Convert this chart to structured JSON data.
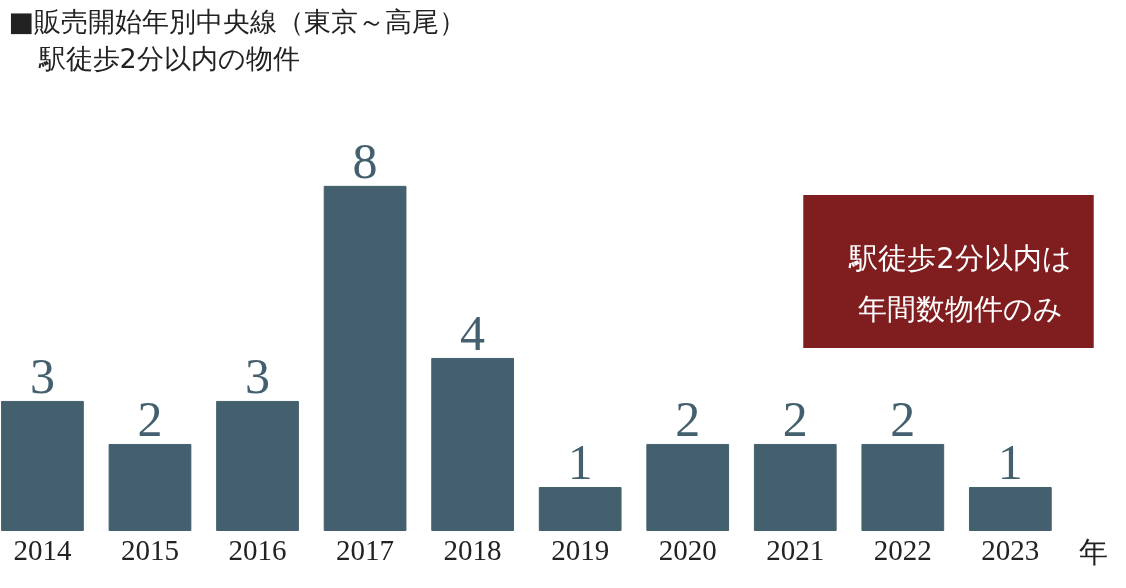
{
  "chart_data": {
    "type": "bar",
    "title": "■販売開始年別中央線（東京～高尾）",
    "subtitle": "駅徒歩2分以内の物件",
    "categories": [
      "2014",
      "2015",
      "2016",
      "2017",
      "2018",
      "2019",
      "2020",
      "2021",
      "2022",
      "2023"
    ],
    "values": [
      3,
      2,
      3,
      8,
      4,
      1,
      2,
      2,
      2,
      1
    ],
    "color": "#44606e",
    "xlabel": "年",
    "data_labels": true,
    "grid": false,
    "annotations": [
      "駅徒歩2分以内は",
      "年間数物件のみ"
    ]
  }
}
